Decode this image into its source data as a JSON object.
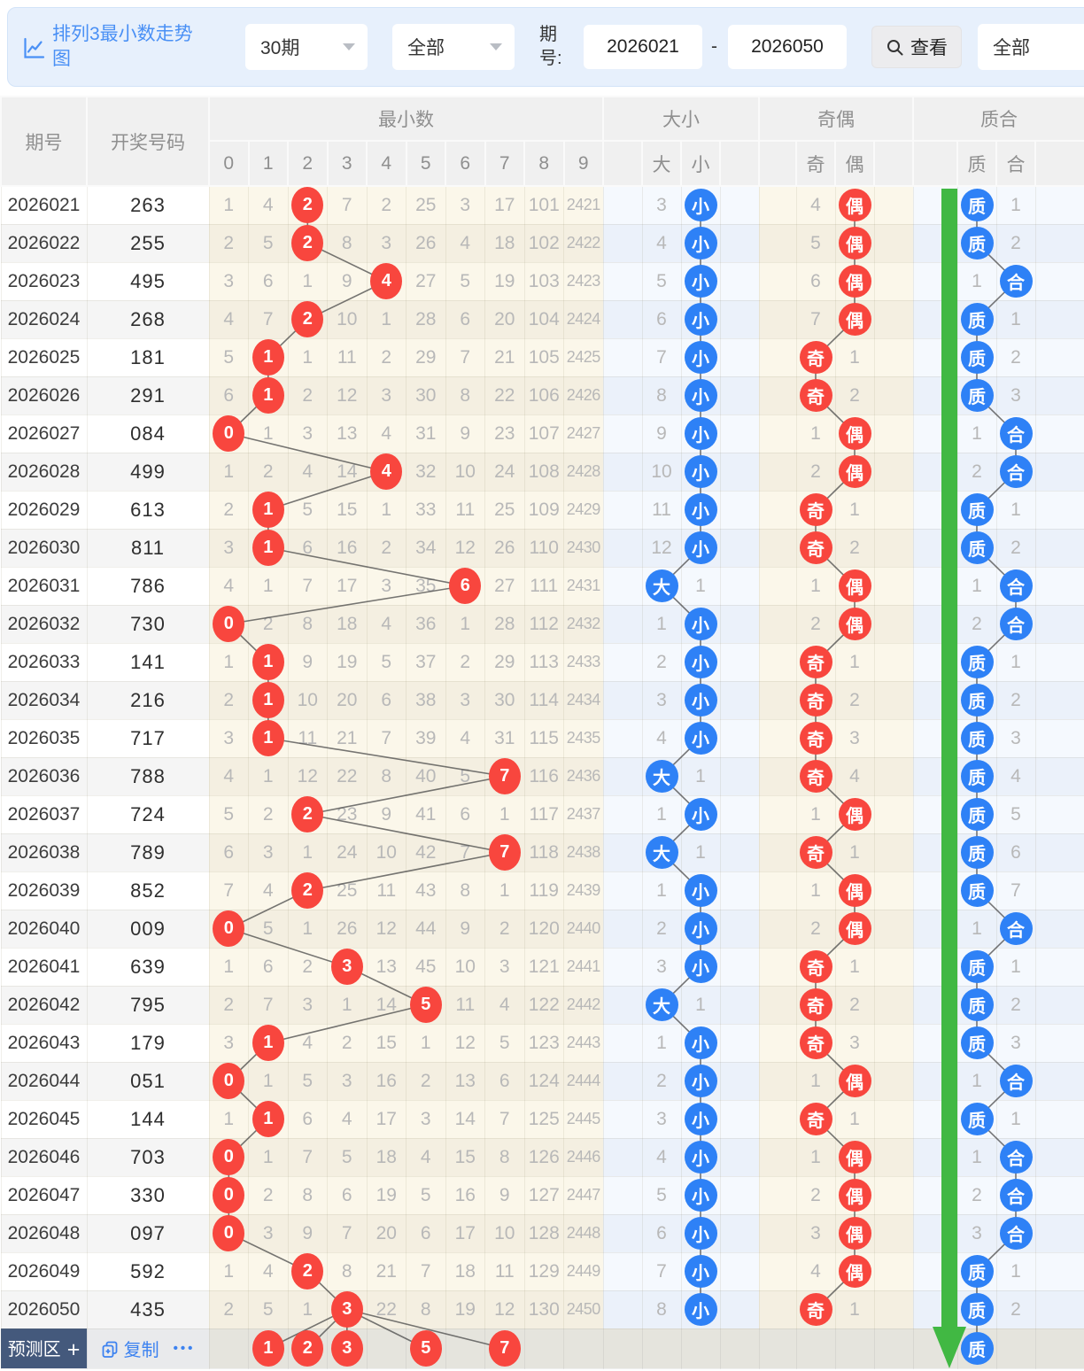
{
  "filter_bar": {
    "title": "排列3最小数走势图",
    "period_select": "30期",
    "type_select": "全部",
    "period_label": "期号:",
    "period_from": "2026021",
    "range_dash": "-",
    "period_to": "2026050",
    "view_button": "查看",
    "right_select": "全部"
  },
  "table": {
    "header": {
      "period": "期号",
      "number": "开奖号码",
      "min_group": "最小数",
      "digits": [
        "0",
        "1",
        "2",
        "3",
        "4",
        "5",
        "6",
        "7",
        "8",
        "9"
      ],
      "dx_group": "大小",
      "dx_cols": [
        "大",
        "小"
      ],
      "jo_group": "奇偶",
      "jo_cols": [
        "奇",
        "偶"
      ],
      "zh_group": "质合",
      "zh_cols": [
        "质",
        "合"
      ]
    },
    "rows": [
      {
        "period": "2026021",
        "number": "263",
        "miss": [
          1,
          4,
          2,
          7,
          2,
          25,
          3,
          17,
          101,
          2421
        ],
        "min": 2,
        "dx": [
          "3",
          "小"
        ],
        "jo": [
          "4",
          "偶"
        ],
        "zh": [
          "质",
          "1"
        ]
      },
      {
        "period": "2026022",
        "number": "255",
        "miss": [
          2,
          5,
          2,
          8,
          3,
          26,
          4,
          18,
          102,
          2422
        ],
        "min": 2,
        "dx": [
          "4",
          "小"
        ],
        "jo": [
          "5",
          "偶"
        ],
        "zh": [
          "质",
          "2"
        ]
      },
      {
        "period": "2026023",
        "number": "495",
        "miss": [
          3,
          6,
          1,
          9,
          4,
          27,
          5,
          19,
          103,
          2423
        ],
        "min": 4,
        "dx": [
          "5",
          "小"
        ],
        "jo": [
          "6",
          "偶"
        ],
        "zh": [
          "1",
          "合"
        ]
      },
      {
        "period": "2026024",
        "number": "268",
        "miss": [
          4,
          7,
          2,
          10,
          1,
          28,
          6,
          20,
          104,
          2424
        ],
        "min": 2,
        "dx": [
          "6",
          "小"
        ],
        "jo": [
          "7",
          "偶"
        ],
        "zh": [
          "质",
          "1"
        ]
      },
      {
        "period": "2026025",
        "number": "181",
        "miss": [
          5,
          1,
          1,
          11,
          2,
          29,
          7,
          21,
          105,
          2425
        ],
        "min": 1,
        "dx": [
          "7",
          "小"
        ],
        "jo": [
          "奇",
          "1"
        ],
        "zh": [
          "质",
          "2"
        ]
      },
      {
        "period": "2026026",
        "number": "291",
        "miss": [
          6,
          1,
          2,
          12,
          3,
          30,
          8,
          22,
          106,
          2426
        ],
        "min": 1,
        "dx": [
          "8",
          "小"
        ],
        "jo": [
          "奇",
          "2"
        ],
        "zh": [
          "质",
          "3"
        ]
      },
      {
        "period": "2026027",
        "number": "084",
        "miss": [
          0,
          1,
          3,
          13,
          4,
          31,
          9,
          23,
          107,
          2427
        ],
        "min": 0,
        "dx": [
          "9",
          "小"
        ],
        "jo": [
          "1",
          "偶"
        ],
        "zh": [
          "1",
          "合"
        ]
      },
      {
        "period": "2026028",
        "number": "499",
        "miss": [
          1,
          2,
          4,
          14,
          4,
          32,
          10,
          24,
          108,
          2428
        ],
        "min": 4,
        "dx": [
          "10",
          "小"
        ],
        "jo": [
          "2",
          "偶"
        ],
        "zh": [
          "2",
          "合"
        ]
      },
      {
        "period": "2026029",
        "number": "613",
        "miss": [
          2,
          1,
          5,
          15,
          1,
          33,
          11,
          25,
          109,
          2429
        ],
        "min": 1,
        "dx": [
          "11",
          "小"
        ],
        "jo": [
          "奇",
          "1"
        ],
        "zh": [
          "质",
          "1"
        ]
      },
      {
        "period": "2026030",
        "number": "811",
        "miss": [
          3,
          1,
          6,
          16,
          2,
          34,
          12,
          26,
          110,
          2430
        ],
        "min": 1,
        "dx": [
          "12",
          "小"
        ],
        "jo": [
          "奇",
          "2"
        ],
        "zh": [
          "质",
          "2"
        ]
      },
      {
        "period": "2026031",
        "number": "786",
        "miss": [
          4,
          1,
          7,
          17,
          3,
          35,
          6,
          27,
          111,
          2431
        ],
        "min": 6,
        "dx": [
          "大",
          "1"
        ],
        "jo": [
          "1",
          "偶"
        ],
        "zh": [
          "1",
          "合"
        ]
      },
      {
        "period": "2026032",
        "number": "730",
        "miss": [
          0,
          2,
          8,
          18,
          4,
          36,
          1,
          28,
          112,
          2432
        ],
        "min": 0,
        "dx": [
          "1",
          "小"
        ],
        "jo": [
          "2",
          "偶"
        ],
        "zh": [
          "2",
          "合"
        ]
      },
      {
        "period": "2026033",
        "number": "141",
        "miss": [
          1,
          1,
          9,
          19,
          5,
          37,
          2,
          29,
          113,
          2433
        ],
        "min": 1,
        "dx": [
          "2",
          "小"
        ],
        "jo": [
          "奇",
          "1"
        ],
        "zh": [
          "质",
          "1"
        ]
      },
      {
        "period": "2026034",
        "number": "216",
        "miss": [
          2,
          1,
          10,
          20,
          6,
          38,
          3,
          30,
          114,
          2434
        ],
        "min": 1,
        "dx": [
          "3",
          "小"
        ],
        "jo": [
          "奇",
          "2"
        ],
        "zh": [
          "质",
          "2"
        ]
      },
      {
        "period": "2026035",
        "number": "717",
        "miss": [
          3,
          1,
          11,
          21,
          7,
          39,
          4,
          31,
          115,
          2435
        ],
        "min": 1,
        "dx": [
          "4",
          "小"
        ],
        "jo": [
          "奇",
          "3"
        ],
        "zh": [
          "质",
          "3"
        ]
      },
      {
        "period": "2026036",
        "number": "788",
        "miss": [
          4,
          1,
          12,
          22,
          8,
          40,
          5,
          7,
          116,
          2436
        ],
        "min": 7,
        "dx": [
          "大",
          "1"
        ],
        "jo": [
          "奇",
          "4"
        ],
        "zh": [
          "质",
          "4"
        ]
      },
      {
        "period": "2026037",
        "number": "724",
        "miss": [
          5,
          2,
          2,
          23,
          9,
          41,
          6,
          1,
          117,
          2437
        ],
        "min": 2,
        "dx": [
          "1",
          "小"
        ],
        "jo": [
          "1",
          "偶"
        ],
        "zh": [
          "质",
          "5"
        ]
      },
      {
        "period": "2026038",
        "number": "789",
        "miss": [
          6,
          3,
          1,
          24,
          10,
          42,
          7,
          7,
          118,
          2438
        ],
        "min": 7,
        "dx": [
          "大",
          "1"
        ],
        "jo": [
          "奇",
          "1"
        ],
        "zh": [
          "质",
          "6"
        ]
      },
      {
        "period": "2026039",
        "number": "852",
        "miss": [
          7,
          4,
          2,
          25,
          11,
          43,
          8,
          1,
          119,
          2439
        ],
        "min": 2,
        "dx": [
          "1",
          "小"
        ],
        "jo": [
          "1",
          "偶"
        ],
        "zh": [
          "质",
          "7"
        ]
      },
      {
        "period": "2026040",
        "number": "009",
        "miss": [
          0,
          5,
          1,
          26,
          12,
          44,
          9,
          2,
          120,
          2440
        ],
        "min": 0,
        "dx": [
          "2",
          "小"
        ],
        "jo": [
          "2",
          "偶"
        ],
        "zh": [
          "1",
          "合"
        ]
      },
      {
        "period": "2026041",
        "number": "639",
        "miss": [
          1,
          6,
          2,
          3,
          13,
          45,
          10,
          3,
          121,
          2441
        ],
        "min": 3,
        "dx": [
          "3",
          "小"
        ],
        "jo": [
          "奇",
          "1"
        ],
        "zh": [
          "质",
          "1"
        ]
      },
      {
        "period": "2026042",
        "number": "795",
        "miss": [
          2,
          7,
          3,
          1,
          14,
          5,
          11,
          4,
          122,
          2442
        ],
        "min": 5,
        "dx": [
          "大",
          "1"
        ],
        "jo": [
          "奇",
          "2"
        ],
        "zh": [
          "质",
          "2"
        ]
      },
      {
        "period": "2026043",
        "number": "179",
        "miss": [
          3,
          1,
          4,
          2,
          15,
          1,
          12,
          5,
          123,
          2443
        ],
        "min": 1,
        "dx": [
          "1",
          "小"
        ],
        "jo": [
          "奇",
          "3"
        ],
        "zh": [
          "质",
          "3"
        ]
      },
      {
        "period": "2026044",
        "number": "051",
        "miss": [
          0,
          1,
          5,
          3,
          16,
          2,
          13,
          6,
          124,
          2444
        ],
        "min": 0,
        "dx": [
          "2",
          "小"
        ],
        "jo": [
          "1",
          "偶"
        ],
        "zh": [
          "1",
          "合"
        ]
      },
      {
        "period": "2026045",
        "number": "144",
        "miss": [
          1,
          1,
          6,
          4,
          17,
          3,
          14,
          7,
          125,
          2445
        ],
        "min": 1,
        "dx": [
          "3",
          "小"
        ],
        "jo": [
          "奇",
          "1"
        ],
        "zh": [
          "质",
          "1"
        ]
      },
      {
        "period": "2026046",
        "number": "703",
        "miss": [
          0,
          1,
          7,
          5,
          18,
          4,
          15,
          8,
          126,
          2446
        ],
        "min": 0,
        "dx": [
          "4",
          "小"
        ],
        "jo": [
          "1",
          "偶"
        ],
        "zh": [
          "1",
          "合"
        ]
      },
      {
        "period": "2026047",
        "number": "330",
        "miss": [
          0,
          2,
          8,
          6,
          19,
          5,
          16,
          9,
          127,
          2447
        ],
        "min": 0,
        "dx": [
          "5",
          "小"
        ],
        "jo": [
          "2",
          "偶"
        ],
        "zh": [
          "2",
          "合"
        ]
      },
      {
        "period": "2026048",
        "number": "097",
        "miss": [
          0,
          3,
          9,
          7,
          20,
          6,
          17,
          10,
          128,
          2448
        ],
        "min": 0,
        "dx": [
          "6",
          "小"
        ],
        "jo": [
          "3",
          "偶"
        ],
        "zh": [
          "3",
          "合"
        ]
      },
      {
        "period": "2026049",
        "number": "592",
        "miss": [
          1,
          4,
          2,
          8,
          21,
          7,
          18,
          11,
          129,
          2449
        ],
        "min": 2,
        "dx": [
          "7",
          "小"
        ],
        "jo": [
          "4",
          "偶"
        ],
        "zh": [
          "质",
          "1"
        ]
      },
      {
        "period": "2026050",
        "number": "435",
        "miss": [
          2,
          5,
          1,
          3,
          22,
          8,
          19,
          12,
          130,
          2450
        ],
        "min": 3,
        "dx": [
          "8",
          "小"
        ],
        "jo": [
          "奇",
          "1"
        ],
        "zh": [
          "质",
          "2"
        ]
      }
    ],
    "footer": {
      "predict_label": "预测区",
      "predict_plus": "+",
      "copy_label": "复制",
      "more_label": "•••",
      "predictions": [
        1,
        2,
        3,
        5,
        7
      ],
      "zh_prediction": "质"
    }
  },
  "colors": {
    "red_circle": "#f8463e",
    "blue_circle": "#2e81f6",
    "green_arrow": "#41b843",
    "title_blue": "#4a90f5",
    "line": "#4a4a4a"
  }
}
